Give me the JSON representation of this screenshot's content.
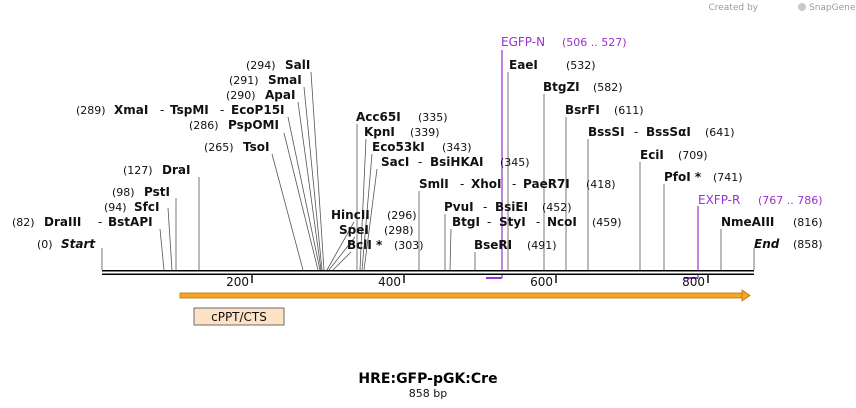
{
  "brand": {
    "created_by": "Created by",
    "app": "SnapGene"
  },
  "sequence": {
    "name": "HRE:GFP-pGK:Cre",
    "length_label": "858 bp"
  },
  "ruler": {
    "ticks": [
      "200",
      "400",
      "600",
      "800"
    ]
  },
  "ends": {
    "start": "Start",
    "start_pos": "(0)",
    "end": "End",
    "end_pos": "(858)"
  },
  "enzymes": [
    {
      "label": "DraIII",
      "pos": "(82)"
    },
    {
      "label": "BstAPI"
    },
    {
      "label": "SfcI",
      "pos": "(94)"
    },
    {
      "label": "PstI",
      "pos": "(98)"
    },
    {
      "label": "DraI",
      "pos": "(127)"
    },
    {
      "label": "TsoI",
      "pos": "(265)"
    },
    {
      "label": "PspOMI",
      "pos": "(286)"
    },
    {
      "label": "XmaI",
      "pos": "(289)"
    },
    {
      "label": "TspMI"
    },
    {
      "label": "EcoP15I"
    },
    {
      "label": "ApaI",
      "pos": "(290)"
    },
    {
      "label": "SmaI",
      "pos": "(291)"
    },
    {
      "label": "SalI",
      "pos": "(294)"
    },
    {
      "label": "HincII",
      "pos": "(296)"
    },
    {
      "label": "SpeI",
      "pos": "(298)"
    },
    {
      "label": "BclI *",
      "pos": "(303)"
    },
    {
      "label": "Acc65I",
      "pos": "(335)"
    },
    {
      "label": "KpnI",
      "pos": "(339)"
    },
    {
      "label": "Eco53kI",
      "pos": "(343)"
    },
    {
      "label": "SacI"
    },
    {
      "label": "BsiHKAI",
      "pos": "(345)"
    },
    {
      "label": "SmlI"
    },
    {
      "label": "XhoI"
    },
    {
      "label": "PaeR7I",
      "pos": "(418)"
    },
    {
      "label": "PvuI"
    },
    {
      "label": "BsiEI",
      "pos": "(452)"
    },
    {
      "label": "BtgI"
    },
    {
      "label": "StyI"
    },
    {
      "label": "NcoI",
      "pos": "(459)"
    },
    {
      "label": "BseRI",
      "pos": "(491)"
    },
    {
      "label": "EaeI",
      "pos": "(532)"
    },
    {
      "label": "BtgZI",
      "pos": "(582)"
    },
    {
      "label": "BsrFI",
      "pos": "(611)"
    },
    {
      "label": "BssSI"
    },
    {
      "label": "BssSαI",
      "pos": "(641)"
    },
    {
      "label": "EciI",
      "pos": "(709)"
    },
    {
      "label": "PfoI *",
      "pos": "(741)"
    },
    {
      "label": "NmeAIII",
      "pos": "(816)"
    }
  ],
  "dash": "-",
  "primers": [
    {
      "label": "EGFP-N",
      "range": "(506 .. 527)"
    },
    {
      "label": "EXFP-R",
      "range": "(767 .. 786)"
    }
  ],
  "features": [
    {
      "label": "cPPT/CTS"
    }
  ],
  "colors": {
    "primer": "#9b30d0",
    "feature_fill": "#f6a623",
    "feature_box": "#fde2c6"
  }
}
